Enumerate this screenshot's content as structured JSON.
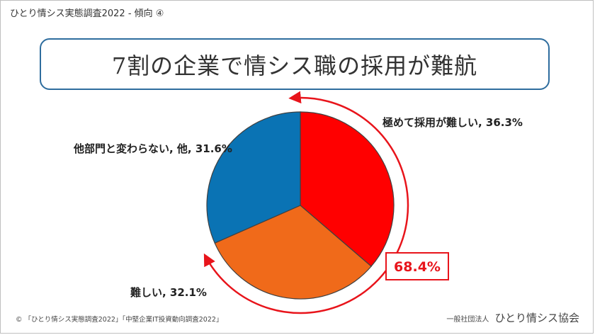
{
  "header": {
    "title": "ひとり情シス実態調査2022 - 傾向 ④"
  },
  "slide": {
    "title": "7割の企業で情シス職の採用が難航"
  },
  "chart_data": {
    "type": "pie",
    "title": "",
    "slices": [
      {
        "label": "極めて採用が難しい, 36.3%",
        "value": 36.3,
        "color": "#ff0000"
      },
      {
        "label": "難しい, 32.1%",
        "value": 32.1,
        "color": "#f06a1a"
      },
      {
        "label": "他部門と変わらない, 他, 31.6%",
        "value": 31.6,
        "color": "#0a73b4"
      }
    ],
    "annotation": {
      "text": "68.4%",
      "color": "#e8141b"
    }
  },
  "footer": {
    "source": "© 「ひとり情シス実態調査2022」「中堅企業IT投資動向調査2022」",
    "org_prefix": "一般社団法人",
    "org_name": "ひとり情シス協会"
  }
}
